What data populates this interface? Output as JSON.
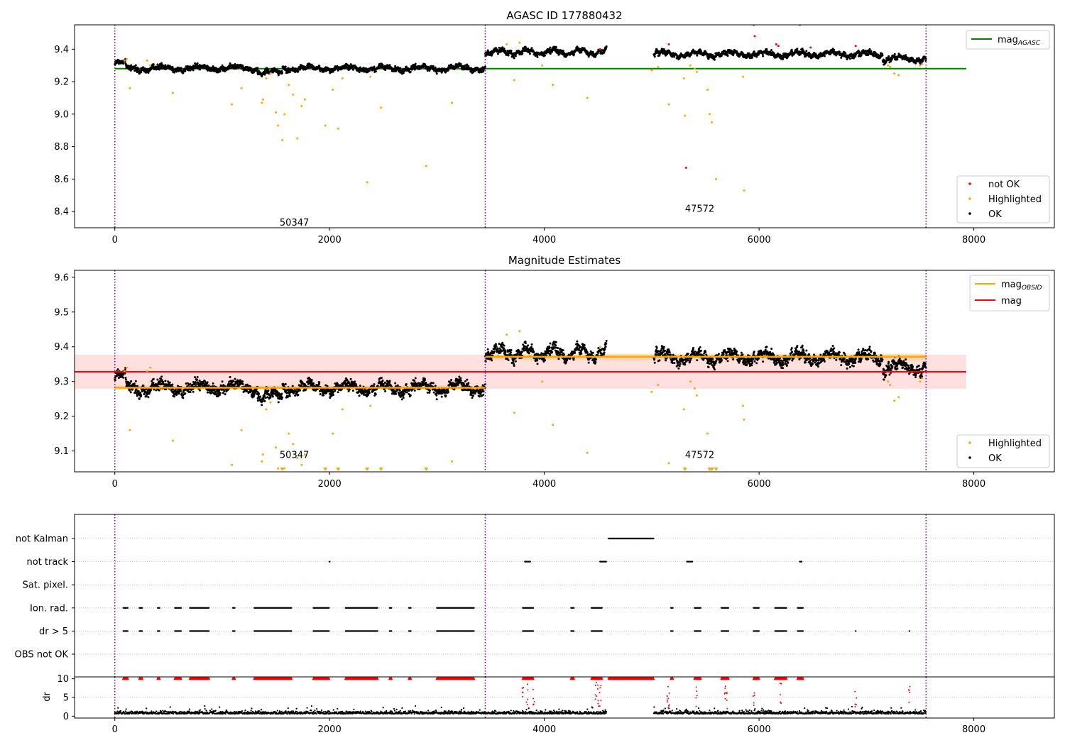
{
  "chart_data": [
    {
      "type": "scatter",
      "title": "AGASC ID 177880432",
      "xlim": [
        -375,
        8750
      ],
      "ylim": [
        8.3,
        9.55
      ],
      "x_ticks": [
        0,
        2000,
        4000,
        6000,
        8000
      ],
      "y_ticks": [
        8.4,
        8.6,
        8.8,
        9.0,
        9.2,
        9.4
      ],
      "obsid_boundaries": [
        0,
        3450,
        7555
      ],
      "line": {
        "name": "mag",
        "name_sub": "AGASC",
        "y": 9.28,
        "x_range": [
          0,
          7930
        ],
        "color": "#008000"
      },
      "obsid_labels": [
        {
          "text": "50347",
          "x": 1725,
          "y": 8.335
        },
        {
          "text": "47572",
          "x": 5500,
          "y": 8.42
        }
      ],
      "legend_lines": [
        {
          "label": "mag",
          "sub": "AGASC",
          "color": "#008000"
        }
      ],
      "legend_points": [
        {
          "label": "not OK",
          "color": "#ff0000"
        },
        {
          "label": "Highlighted",
          "color": "#ffa500"
        },
        {
          "label": "OK",
          "color": "#000000"
        }
      ]
    },
    {
      "type": "scatter",
      "title": "Magnitude Estimates",
      "xlim": [
        -375,
        8750
      ],
      "ylim": [
        9.04,
        9.62
      ],
      "x_ticks": [
        0,
        2000,
        4000,
        6000,
        8000
      ],
      "y_ticks": [
        9.1,
        9.2,
        9.3,
        9.4,
        9.5,
        9.6
      ],
      "obsid_boundaries": [
        0,
        3450,
        7555
      ],
      "mag_line": {
        "name": "mag",
        "y": 9.328,
        "band": [
          9.279,
          9.377
        ],
        "x_range": [
          0,
          7930
        ],
        "color": "#ff0000"
      },
      "obsid_mag": [
        {
          "x_range": [
            0,
            3450
          ],
          "y": 9.282,
          "band": [
            9.276,
            9.288
          ]
        },
        {
          "x_range": [
            3450,
            7555
          ],
          "y": 9.371,
          "band": [
            9.362,
            9.38
          ]
        }
      ],
      "obsid_labels": [
        {
          "text": "50347",
          "x": 1725,
          "y": 9.1
        },
        {
          "text": "47572",
          "x": 5500,
          "y": 9.1
        }
      ],
      "legend_lines": [
        {
          "label": "mag",
          "sub": "OBSID",
          "color": "#ffa500"
        },
        {
          "label": "mag",
          "sub": "",
          "color": "#ff0000"
        }
      ],
      "legend_points": [
        {
          "label": "Highlighted",
          "color": "#ffa500"
        },
        {
          "label": "OK",
          "color": "#000000"
        }
      ]
    },
    {
      "type": "scatter",
      "title": "",
      "xlim": [
        -375,
        8750
      ],
      "x_ticks": [
        0,
        2000,
        4000,
        6000,
        8000
      ],
      "obsid_boundaries": [
        0,
        3450,
        7555
      ],
      "flag_rows": [
        "not Kalman",
        "not track",
        "Sat. pixel.",
        "Ion. rad.",
        "dr > 5",
        "OBS not OK"
      ],
      "flag_ranges": {
        "not Kalman": [
          [
            4600,
            5020
          ]
        ],
        "not track": [
          [
            2000,
            2000
          ],
          [
            3820,
            3870
          ],
          [
            4520,
            4580
          ],
          [
            5330,
            5380
          ],
          [
            6380,
            6400
          ]
        ],
        "Sat. pixel.": [],
        "Ion. rad.": [
          [
            80,
            120
          ],
          [
            230,
            260
          ],
          [
            400,
            420
          ],
          [
            560,
            620
          ],
          [
            700,
            880
          ],
          [
            1100,
            1120
          ],
          [
            1300,
            1650
          ],
          [
            1850,
            2000
          ],
          [
            2150,
            2450
          ],
          [
            2560,
            2580
          ],
          [
            2740,
            2760
          ],
          [
            3000,
            3350
          ],
          [
            3800,
            3900
          ],
          [
            4250,
            4280
          ],
          [
            4440,
            4540
          ],
          [
            5180,
            5200
          ],
          [
            5400,
            5460
          ],
          [
            5650,
            5720
          ],
          [
            5950,
            6000
          ],
          [
            6150,
            6260
          ],
          [
            6360,
            6410
          ]
        ],
        "dr > 5": [
          [
            80,
            120
          ],
          [
            230,
            260
          ],
          [
            400,
            420
          ],
          [
            560,
            620
          ],
          [
            700,
            880
          ],
          [
            1100,
            1120
          ],
          [
            1300,
            1650
          ],
          [
            1850,
            2000
          ],
          [
            2150,
            2450
          ],
          [
            2560,
            2580
          ],
          [
            2740,
            2760
          ],
          [
            3000,
            3350
          ],
          [
            3800,
            3900
          ],
          [
            4250,
            4280
          ],
          [
            4440,
            4540
          ],
          [
            5180,
            5200
          ],
          [
            5400,
            5460
          ],
          [
            5650,
            5720
          ],
          [
            5950,
            6000
          ],
          [
            6150,
            6260
          ],
          [
            6360,
            6410
          ],
          [
            6900,
            6900
          ],
          [
            7400,
            7400
          ]
        ],
        "OBS not OK": []
      },
      "dr": {
        "ylabel": "dr",
        "ylim": [
          -0.5,
          10.5
        ],
        "y_ticks": [
          0,
          5,
          10
        ],
        "clip": 10
      }
    }
  ]
}
